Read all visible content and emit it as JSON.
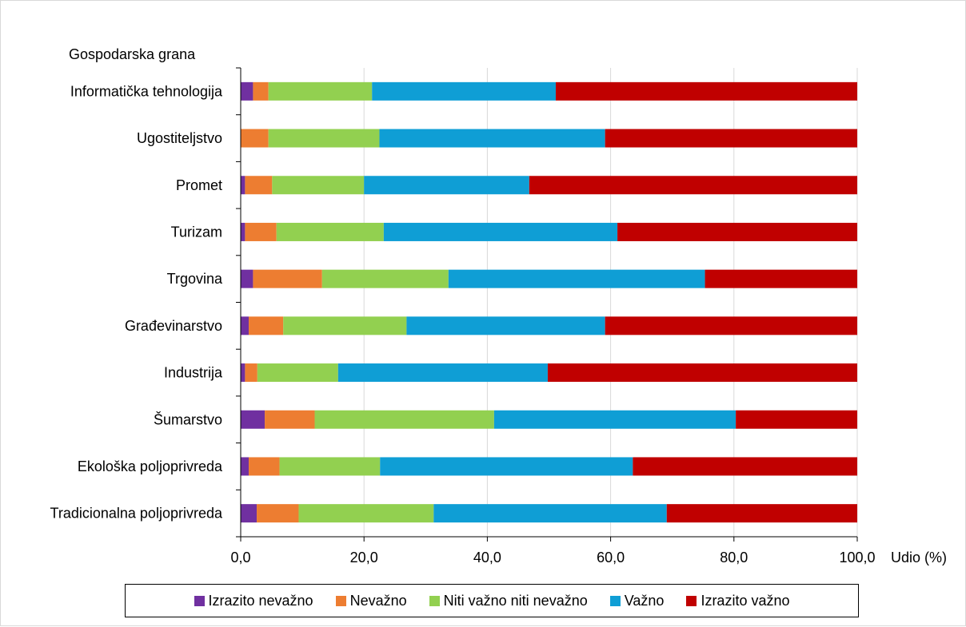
{
  "chart_data": {
    "type": "bar",
    "orientation": "horizontal",
    "stacked": true,
    "title": "",
    "ylabel": "Gospodarska grana",
    "xlabel": "Udio (%)",
    "xlim": [
      0,
      100
    ],
    "xticks": [
      0,
      20,
      40,
      60,
      80,
      100
    ],
    "xtick_labels": [
      "0,0",
      "20,0",
      "40,0",
      "60,0",
      "80,0",
      "100,0"
    ],
    "grid": "vertical major gridlines",
    "legend_position": "bottom",
    "categories": [
      "Informatička tehnologija",
      "Ugostiteljstvo",
      "Promet",
      "Turizam",
      "Trgovina",
      "Građevinarstvo",
      "Industrija",
      "Šumarstvo",
      "Ekološka poljoprivreda",
      "Tradicionalna poljoprivreda"
    ],
    "series": [
      {
        "name": "Izrazito nevažno",
        "color": "#7030a0",
        "values": [
          2.0,
          0.0,
          0.7,
          0.7,
          2.0,
          1.3,
          0.7,
          3.9,
          1.3,
          2.6
        ]
      },
      {
        "name": "Nevažno",
        "color": "#ed7d31",
        "values": [
          2.5,
          4.5,
          4.4,
          5.1,
          11.2,
          5.6,
          2.0,
          8.1,
          5.0,
          6.8
        ]
      },
      {
        "name": "Niti važno niti nevažno",
        "color": "#92d050",
        "values": [
          16.8,
          18.0,
          14.9,
          17.4,
          20.5,
          20.0,
          13.1,
          29.1,
          16.3,
          21.9
        ]
      },
      {
        "name": "Važno",
        "color": "#0f9ed5",
        "values": [
          29.8,
          36.6,
          26.8,
          37.9,
          41.6,
          32.2,
          34.0,
          39.2,
          41.0,
          37.8
        ]
      },
      {
        "name": "Izrazito važno",
        "color": "#c00000",
        "values": [
          48.9,
          40.9,
          53.2,
          38.9,
          24.7,
          40.9,
          50.2,
          19.7,
          36.4,
          30.9
        ]
      }
    ]
  }
}
